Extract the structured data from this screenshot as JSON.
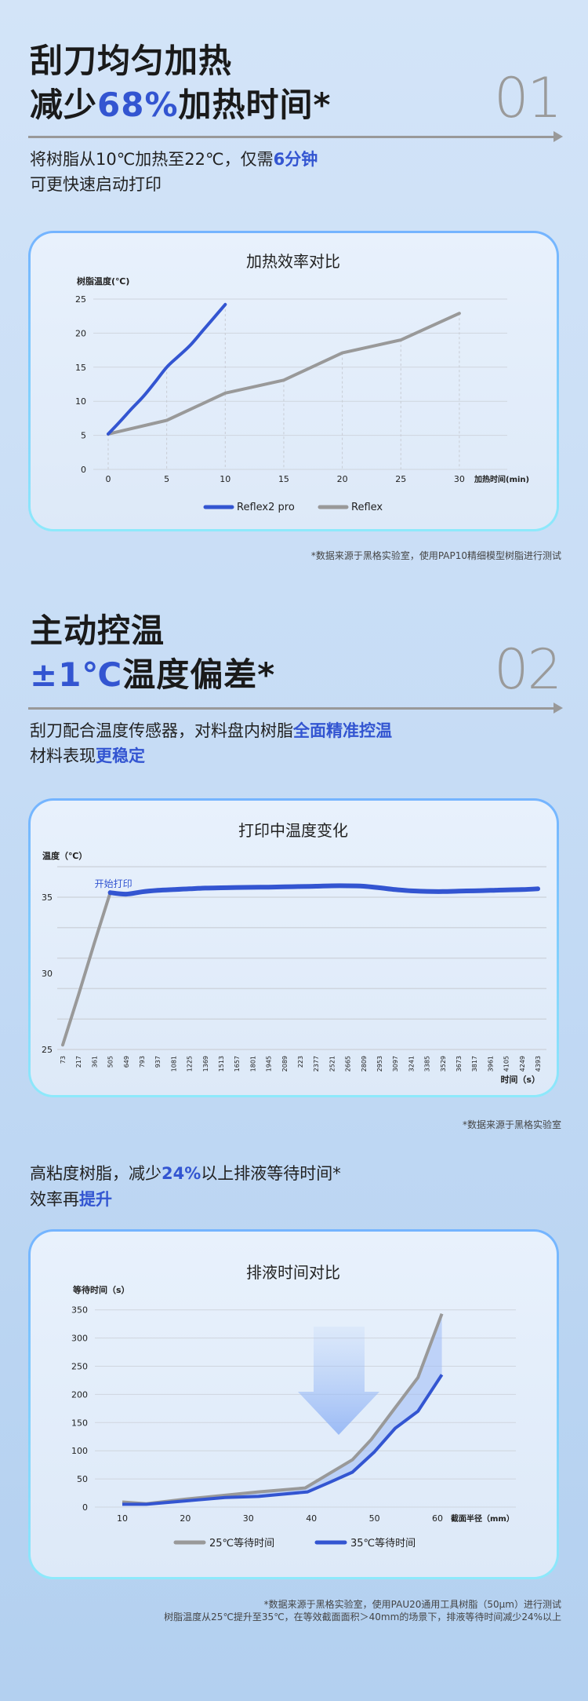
{
  "colors": {
    "accent": "#3355d1",
    "gray_series": "#999999",
    "card_border_top": "#74b4ff",
    "card_border_bottom": "#8de9fb"
  },
  "section1": {
    "title_line1": "刮刀均匀加热",
    "title_line2": [
      {
        "t": "减少",
        "hl": false
      },
      {
        "t": "68%",
        "hl": true
      },
      {
        "t": "加热时间*",
        "hl": false
      }
    ],
    "number": "01",
    "subtitle_line1": [
      {
        "t": "将树脂从10℃加热至22℃，仅需",
        "hl": false
      },
      {
        "t": "6分钟",
        "hl": true
      }
    ],
    "subtitle_line2": "可更快速启动打印",
    "footnote": "*数据来源于黑格实验室，使用PAP10精细模型树脂进行测试"
  },
  "section2": {
    "title_line1": "主动控温",
    "title_line2": [
      {
        "t": "±1℃",
        "hl": true
      },
      {
        "t": "温度偏差*",
        "hl": false
      }
    ],
    "number": "02",
    "subtitle_line1": [
      {
        "t": "刮刀配合温度传感器，对料盘内树脂",
        "hl": false
      },
      {
        "t": "全面精准控温",
        "hl": true
      }
    ],
    "subtitle_line2": [
      {
        "t": "材料表现",
        "hl": false
      },
      {
        "t": "更稳定",
        "hl": true
      }
    ],
    "footnote": "*数据来源于黑格实验室"
  },
  "section3": {
    "subtitle_line1": [
      {
        "t": "高粘度树脂，减少",
        "hl": false
      },
      {
        "t": "24%",
        "hl": true
      },
      {
        "t": "以上排液等待时间*",
        "hl": false
      }
    ],
    "subtitle_line2": [
      {
        "t": "效率再",
        "hl": false
      },
      {
        "t": "提升",
        "hl": true
      }
    ],
    "footnote_line1": "*数据来源于黑格实验室，使用PAU20通用工具树脂（50μm）进行测试",
    "footnote_line2": "树脂温度从25℃提升至35℃，在等效截面面积＞40mm的场景下，排液等待时间减少24%以上"
  },
  "chart_data": [
    {
      "type": "line",
      "title": "加热效率对比",
      "ylabel": "树脂温度(℃)",
      "xlabel": "加热时间(min)",
      "xlim": [
        0,
        30
      ],
      "ylim": [
        0,
        25
      ],
      "xticks": [
        0,
        5,
        10,
        15,
        20,
        25,
        30
      ],
      "yticks": [
        0,
        5,
        10,
        15,
        20,
        25
      ],
      "grid": true,
      "legend": "bottom",
      "series": [
        {
          "name": "Reflex2 pro",
          "color": "#3355d1",
          "x": [
            0,
            1,
            2,
            3,
            4,
            5,
            6,
            7,
            8,
            9,
            10
          ],
          "y": [
            5.2,
            7.0,
            8.9,
            10.7,
            12.8,
            15.0,
            16.6,
            18.2,
            20.2,
            22.2,
            24.2
          ]
        },
        {
          "name": "Reflex",
          "color": "#999999",
          "x": [
            0,
            5,
            10,
            15,
            20,
            25,
            30
          ],
          "y": [
            5.2,
            7.2,
            11.2,
            13.1,
            17.1,
            19.0,
            22.9
          ]
        }
      ]
    },
    {
      "type": "line",
      "title": "打印中温度变化",
      "ylabel": "温度（℃）",
      "xlabel": "时间（s）",
      "ylim": [
        25,
        37
      ],
      "yticks": [
        25,
        30,
        35
      ],
      "grid": true,
      "categories": [
        "73",
        "217",
        "361",
        "505",
        "649",
        "793",
        "937",
        "1081",
        "1225",
        "1369",
        "1513",
        "1657",
        "1801",
        "1945",
        "2089",
        "223",
        "2377",
        "2521",
        "2665",
        "2809",
        "2953",
        "3097",
        "3241",
        "3385",
        "3529",
        "3673",
        "3817",
        "3961",
        "4105",
        "4249",
        "4393"
      ],
      "annotation": {
        "text": "开始打印",
        "category": "505"
      },
      "series": [
        {
          "color": "#999999",
          "values": [
            25.3,
            28.6,
            32.0,
            35.3,
            null,
            null,
            null,
            null,
            null,
            null,
            null,
            null,
            null,
            null,
            null,
            null,
            null,
            null,
            null,
            null,
            null,
            null,
            null,
            null,
            null,
            null,
            null,
            null,
            null,
            null,
            null
          ]
        },
        {
          "color": "#3355d1",
          "values": [
            null,
            null,
            null,
            35.3,
            35.2,
            35.35,
            35.45,
            35.5,
            35.55,
            35.6,
            35.62,
            35.64,
            35.65,
            35.66,
            35.68,
            35.7,
            35.72,
            35.75,
            35.75,
            35.72,
            35.62,
            35.5,
            35.42,
            35.38,
            35.37,
            35.4,
            35.42,
            35.45,
            35.48,
            35.5,
            35.55
          ]
        }
      ]
    },
    {
      "type": "line",
      "title": "排液时间对比",
      "ylabel": "等待时间（s）",
      "xlabel": "截面半径（mm）",
      "xlim": [
        10,
        60
      ],
      "ylim": [
        0,
        350
      ],
      "xticks": [
        10,
        20,
        30,
        40,
        50,
        60
      ],
      "yticks": [
        0,
        50,
        100,
        150,
        200,
        250,
        300,
        350
      ],
      "grid": true,
      "legend": "bottom",
      "series": [
        {
          "name": "25℃等待时间",
          "color": "#999999",
          "x": [
            10,
            13.8,
            20,
            26.3,
            31.6,
            39,
            46.5,
            49.5,
            53,
            56.9,
            60.7
          ],
          "y": [
            9,
            6,
            14,
            21,
            27,
            34,
            84,
            120,
            172,
            230,
            343
          ]
        },
        {
          "name": "35℃等待时间",
          "color": "#3355d1",
          "x": [
            10,
            13.8,
            20,
            26.3,
            31.6,
            39.4,
            42.9,
            46.5,
            50,
            53.3,
            56.9,
            60.7
          ],
          "y": [
            5,
            5,
            11,
            17,
            19,
            27,
            44,
            62,
            98,
            140,
            170,
            235
          ]
        }
      ]
    }
  ]
}
